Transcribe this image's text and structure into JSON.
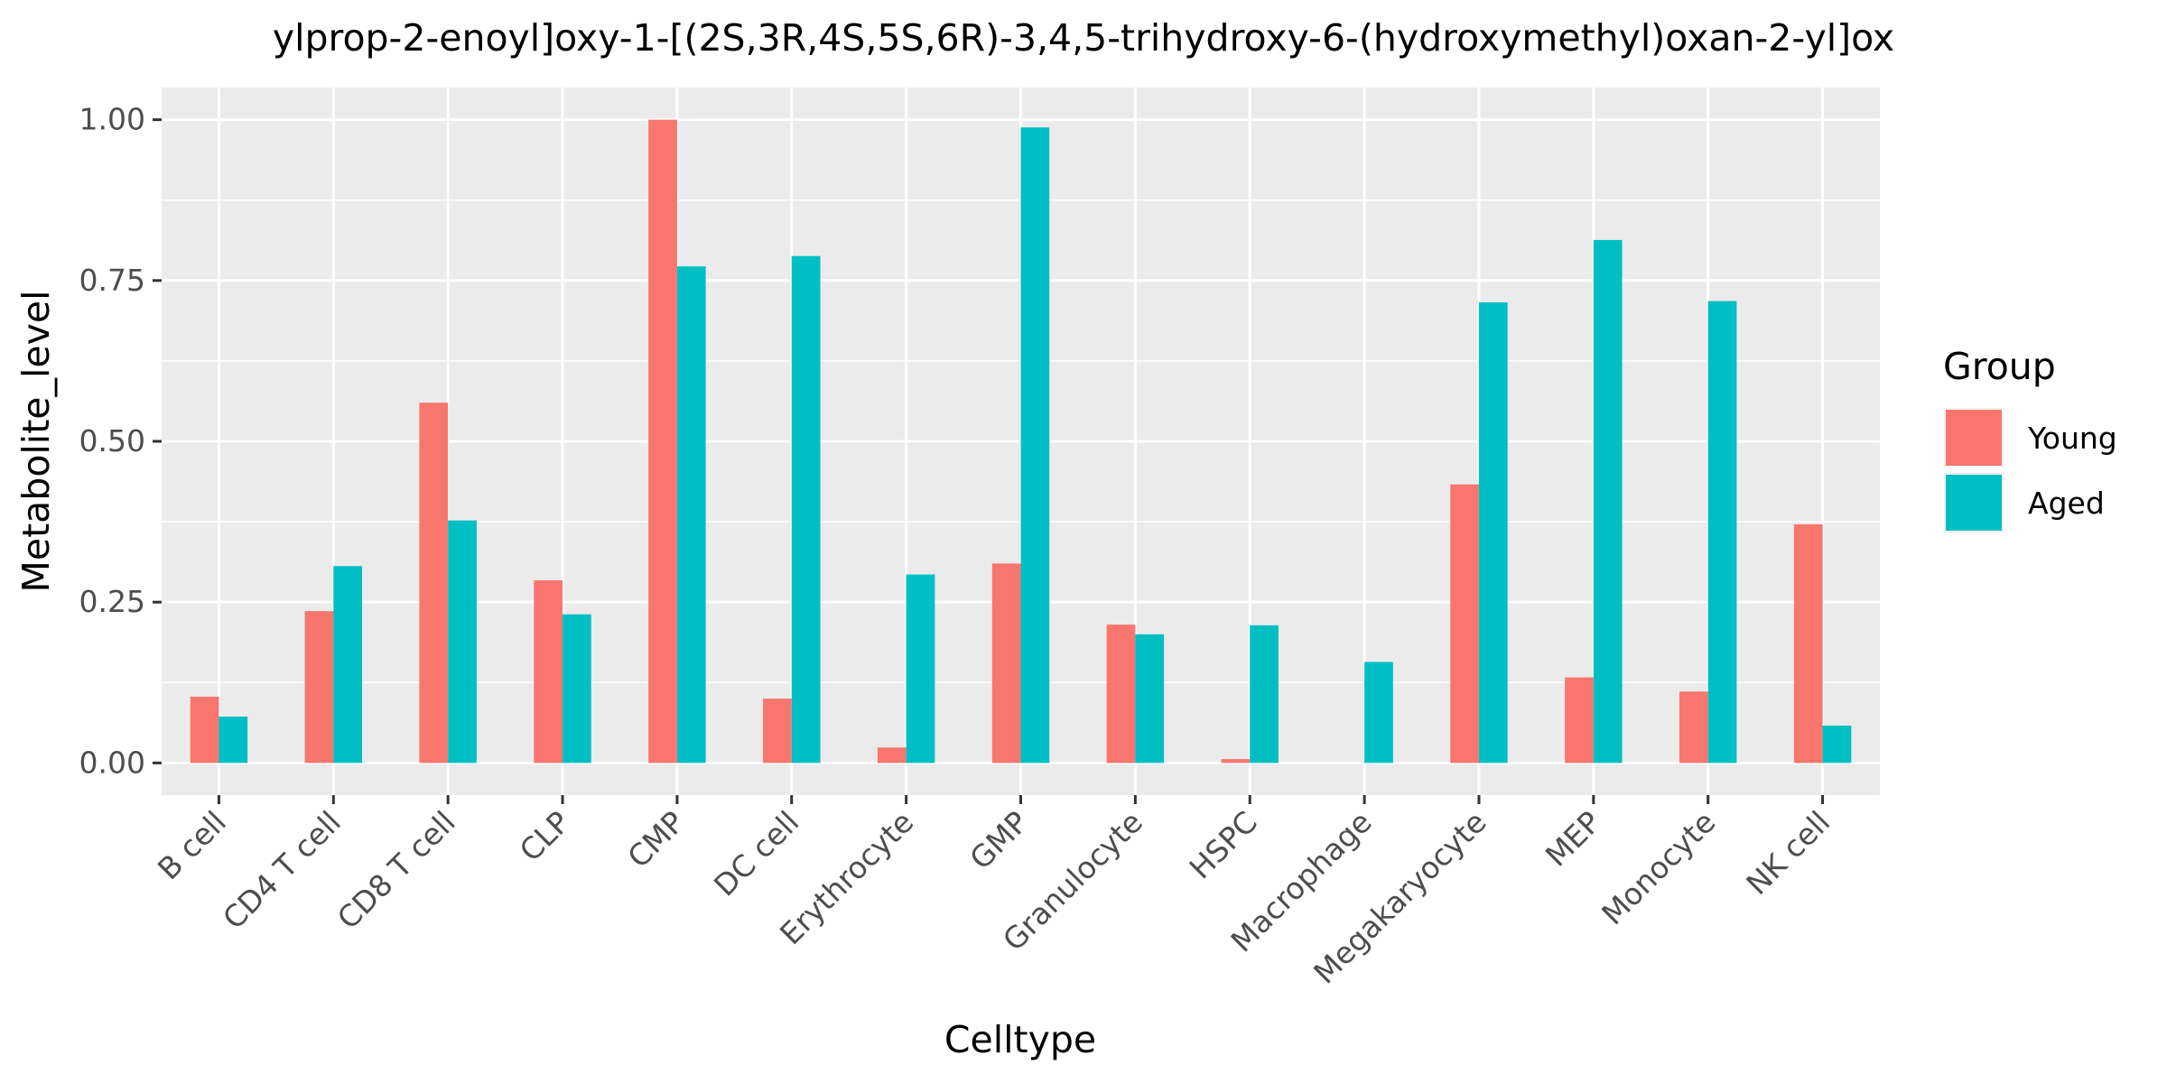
{
  "chart_data": {
    "type": "bar",
    "title": "ylprop-2-enoyl]oxy-1-[(2S,3R,4S,5S,6R)-3,4,5-trihydroxy-6-(hydroxymethyl)oxan-2-yl]ox",
    "xlabel": "Celltype",
    "ylabel": "Metabolite_level",
    "ylim": [
      -0.05,
      1.05
    ],
    "y_ticks": [
      0.0,
      0.25,
      0.5,
      0.75,
      1.0
    ],
    "y_tick_labels": [
      "0.00",
      "0.25",
      "0.50",
      "0.75",
      "1.00"
    ],
    "grid": true,
    "legend_position": "right",
    "legend_title": "Group",
    "categories": [
      "B cell",
      "CD4 T cell",
      "CD8 T cell",
      "CLP",
      "CMP",
      "DC cell",
      "Erythrocyte",
      "GMP",
      "Granulocyte",
      "HSPC",
      "Macrophage",
      "Megakaryocyte",
      "MEP",
      "Monocyte",
      "NK cell"
    ],
    "series": [
      {
        "name": "Young",
        "color": "#F8766D",
        "values": [
          0.103,
          0.236,
          0.56,
          0.284,
          1.0,
          0.1,
          0.024,
          0.31,
          0.215,
          0.006,
          0.0,
          0.433,
          0.133,
          0.111,
          0.371
        ]
      },
      {
        "name": "Aged",
        "color": "#00BFC4",
        "values": [
          0.072,
          0.306,
          0.377,
          0.231,
          0.772,
          0.788,
          0.293,
          0.988,
          0.2,
          0.214,
          0.157,
          0.716,
          0.813,
          0.718,
          0.058
        ]
      }
    ],
    "panel_background": "#EBEBEB",
    "grid_color": "#FFFFFF"
  }
}
